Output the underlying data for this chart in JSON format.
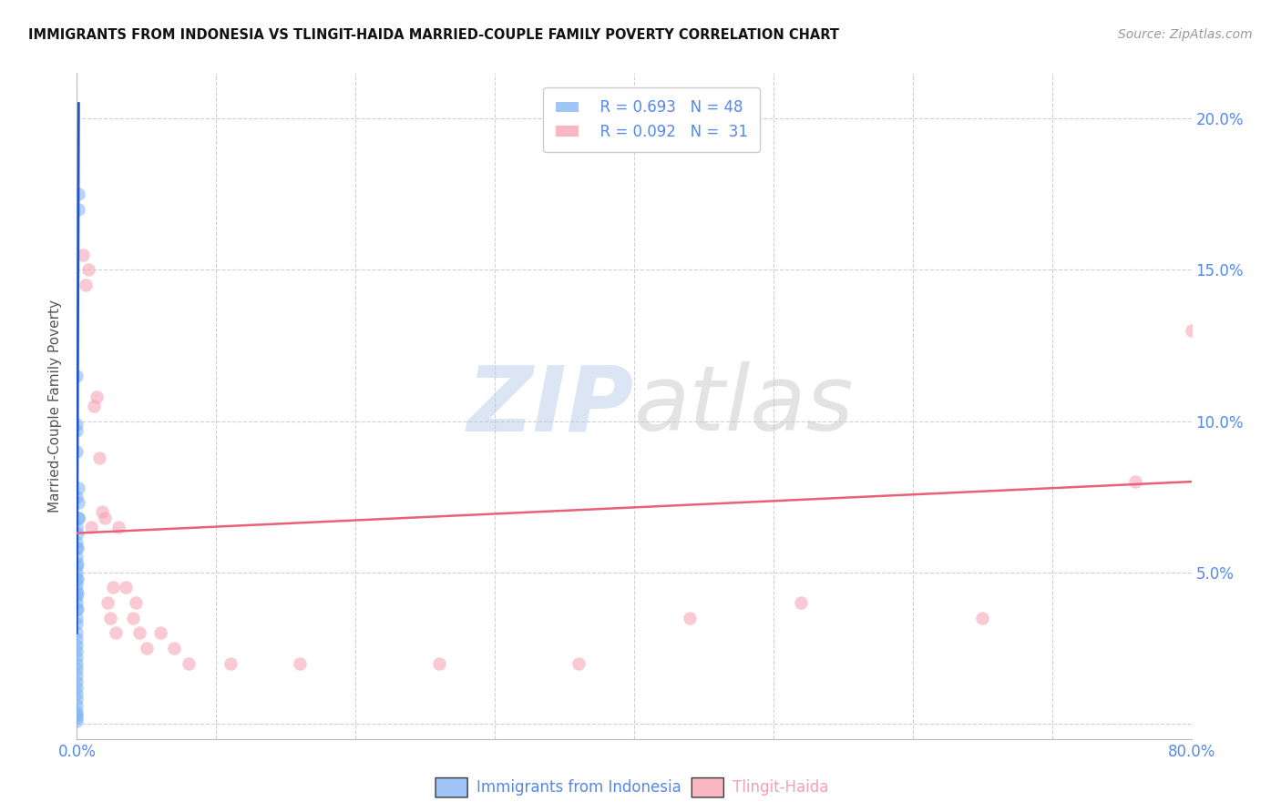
{
  "title": "IMMIGRANTS FROM INDONESIA VS TLINGIT-HAIDA MARRIED-COUPLE FAMILY POVERTY CORRELATION CHART",
  "source": "Source: ZipAtlas.com",
  "ylabel": "Married-Couple Family Poverty",
  "x_label_blue": "Immigrants from Indonesia",
  "x_label_pink": "Tlingit-Haida",
  "xlim": [
    0.0,
    0.8
  ],
  "ylim": [
    -0.005,
    0.215
  ],
  "legend_blue_r": "R = 0.693",
  "legend_blue_n": "N = 48",
  "legend_pink_r": "R = 0.092",
  "legend_pink_n": "N =  31",
  "blue_color": "#7fb3f5",
  "pink_color": "#f5a0b0",
  "blue_line_color": "#2255cc",
  "pink_line_color": "#e8607a",
  "axis_label_color": "#5588ee",
  "grid_color": "#d0d0d0",
  "blue_scatter": [
    [
      0.0,
      0.115
    ],
    [
      0.0,
      0.09
    ],
    [
      0.0,
      0.075
    ],
    [
      0.0,
      0.097
    ],
    [
      0.0,
      0.099
    ],
    [
      0.0,
      0.065
    ],
    [
      0.0,
      0.06
    ],
    [
      0.0,
      0.058
    ],
    [
      0.0,
      0.055
    ],
    [
      0.0,
      0.052
    ],
    [
      0.0,
      0.05
    ],
    [
      0.0,
      0.048
    ],
    [
      0.0,
      0.046
    ],
    [
      0.0,
      0.044
    ],
    [
      0.0,
      0.042
    ],
    [
      0.0,
      0.04
    ],
    [
      0.0,
      0.038
    ],
    [
      0.0,
      0.035
    ],
    [
      0.0,
      0.033
    ],
    [
      0.0,
      0.03
    ],
    [
      0.0,
      0.028
    ],
    [
      0.0,
      0.026
    ],
    [
      0.0,
      0.024
    ],
    [
      0.0,
      0.022
    ],
    [
      0.0,
      0.02
    ],
    [
      0.0,
      0.018
    ],
    [
      0.0,
      0.016
    ],
    [
      0.0,
      0.014
    ],
    [
      0.0,
      0.012
    ],
    [
      0.0,
      0.01
    ],
    [
      0.0,
      0.008
    ],
    [
      0.0,
      0.006
    ],
    [
      0.0,
      0.004
    ],
    [
      0.0,
      0.003
    ],
    [
      0.0,
      0.002
    ],
    [
      0.0,
      0.001
    ],
    [
      0.001,
      0.17
    ],
    [
      0.0012,
      0.175
    ],
    [
      0.0008,
      0.068
    ],
    [
      0.0007,
      0.063
    ],
    [
      0.0005,
      0.058
    ],
    [
      0.0006,
      0.053
    ],
    [
      0.0004,
      0.048
    ],
    [
      0.0003,
      0.043
    ],
    [
      0.0009,
      0.078
    ],
    [
      0.0011,
      0.073
    ],
    [
      0.0013,
      0.068
    ],
    [
      0.0002,
      0.038
    ]
  ],
  "pink_scatter": [
    [
      0.0045,
      0.155
    ],
    [
      0.006,
      0.145
    ],
    [
      0.008,
      0.15
    ],
    [
      0.01,
      0.065
    ],
    [
      0.012,
      0.105
    ],
    [
      0.014,
      0.108
    ],
    [
      0.016,
      0.088
    ],
    [
      0.018,
      0.07
    ],
    [
      0.02,
      0.068
    ],
    [
      0.022,
      0.04
    ],
    [
      0.024,
      0.035
    ],
    [
      0.026,
      0.045
    ],
    [
      0.028,
      0.03
    ],
    [
      0.03,
      0.065
    ],
    [
      0.035,
      0.045
    ],
    [
      0.04,
      0.035
    ],
    [
      0.042,
      0.04
    ],
    [
      0.045,
      0.03
    ],
    [
      0.05,
      0.025
    ],
    [
      0.06,
      0.03
    ],
    [
      0.07,
      0.025
    ],
    [
      0.08,
      0.02
    ],
    [
      0.11,
      0.02
    ],
    [
      0.16,
      0.02
    ],
    [
      0.26,
      0.02
    ],
    [
      0.36,
      0.02
    ],
    [
      0.44,
      0.035
    ],
    [
      0.52,
      0.04
    ],
    [
      0.65,
      0.035
    ],
    [
      0.76,
      0.08
    ],
    [
      0.8,
      0.13
    ]
  ],
  "blue_trendline_x": [
    0.0,
    0.0013
  ],
  "blue_trendline_y": [
    0.03,
    0.205
  ],
  "pink_trendline_x": [
    0.0,
    0.8
  ],
  "pink_trendline_y": [
    0.063,
    0.08
  ]
}
